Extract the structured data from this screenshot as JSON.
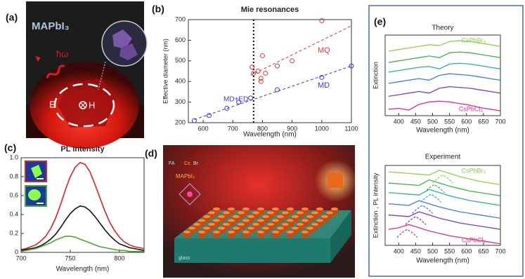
{
  "panel_labels": [
    "(a)",
    "(b)",
    "(c)",
    "(d)",
    "(e)"
  ],
  "illustration_a": {
    "material": "MAPbI₃",
    "photon": "ħω",
    "e_field": "E",
    "h_field": "H"
  },
  "illustration_d": {
    "fa": "FA",
    "cs": "Cs",
    "br": "Br",
    "material": "MAPbI₃",
    "substrate": "glass"
  },
  "chart_data": [
    {
      "type": "scatter",
      "title": "Mie resonances",
      "x_label": "Wavelength (nm)",
      "y_label": "Effective diameter (nm)",
      "xlim": [
        550,
        1100
      ],
      "ylim": [
        200,
        700
      ],
      "xticks": [
        600,
        700,
        800,
        900,
        1000,
        1100
      ],
      "yticks": [
        200,
        300,
        400,
        500,
        600,
        700
      ],
      "series": [
        {
          "name": "MQ",
          "color": "#e03a3a",
          "x": [
            765,
            770,
            785,
            795,
            795,
            800,
            810,
            850,
            900,
            1000
          ],
          "values": [
            470,
            440,
            450,
            400,
            415,
            525,
            440,
            475,
            500,
            695
          ]
        },
        {
          "name": "MD",
          "color": "#3a3ae0",
          "x": [
            570,
            620,
            680,
            720,
            760,
            850,
            1000,
            1100
          ],
          "values": [
            210,
            235,
            270,
            300,
            320,
            360,
            420,
            475
          ]
        }
      ],
      "fits": [
        {
          "color": "#e03a3a",
          "x": [
            760,
            1100
          ],
          "values": [
            430,
            670
          ]
        },
        {
          "color": "#3a3ae0",
          "x": [
            570,
            1100
          ],
          "values": [
            215,
            475
          ]
        }
      ],
      "vline": 770,
      "annotation": "MD+ED"
    },
    {
      "type": "line",
      "title": "PL intensity",
      "x_label": "Wavelength (nm)",
      "xlim": [
        700,
        825
      ],
      "ylim": [
        0,
        1
      ],
      "xticks": [
        700,
        750,
        800
      ],
      "yticks": [
        0,
        0.2,
        0.4,
        0.6,
        0.8,
        {
          "value": 1,
          "label": "1.0"
        }
      ],
      "x": [
        700,
        705,
        710,
        715,
        720,
        725,
        730,
        735,
        740,
        745,
        750,
        755,
        760,
        765,
        770,
        775,
        780,
        785,
        790,
        795,
        800,
        805,
        810,
        815,
        820,
        825
      ],
      "series": [
        {
          "color": "#e02020",
          "values": [
            0.03,
            0.04,
            0.06,
            0.08,
            0.12,
            0.17,
            0.25,
            0.36,
            0.5,
            0.66,
            0.8,
            0.9,
            0.95,
            0.93,
            0.85,
            0.72,
            0.58,
            0.44,
            0.32,
            0.23,
            0.16,
            0.11,
            0.08,
            0.06,
            0.05,
            0.04
          ]
        },
        {
          "color": "#111111",
          "values": [
            0.02,
            0.03,
            0.04,
            0.05,
            0.07,
            0.1,
            0.14,
            0.19,
            0.26,
            0.34,
            0.41,
            0.46,
            0.49,
            0.48,
            0.44,
            0.38,
            0.31,
            0.24,
            0.18,
            0.13,
            0.09,
            0.07,
            0.05,
            0.04,
            0.03,
            0.02
          ]
        },
        {
          "color": "#4aa832",
          "values": [
            0.01,
            0.02,
            0.03,
            0.04,
            0.06,
            0.08,
            0.1,
            0.13,
            0.15,
            0.17,
            0.17,
            0.16,
            0.14,
            0.12,
            0.1,
            0.08,
            0.06,
            0.05,
            0.04,
            0.03,
            0.02,
            0.02,
            0.01,
            0.01,
            0.01,
            0.01
          ]
        }
      ]
    },
    {
      "type": "line",
      "title": "Theory",
      "x_label": "Wavelength (nm)",
      "y_label": "Extinction",
      "xlim": [
        360,
        700
      ],
      "ylim": [
        1,
        6
      ],
      "xticks": [
        400,
        450,
        500,
        550,
        600,
        650,
        700
      ],
      "x": [
        370,
        400,
        430,
        460,
        490,
        520,
        550,
        580,
        610,
        640,
        670,
        700
      ],
      "series": [
        {
          "color": "#8fd14f",
          "values": [
            5.0,
            5.1,
            5.2,
            5.3,
            5.4,
            5.35,
            5.6,
            5.65,
            5.6,
            5.5,
            5.4,
            5.3
          ]
        },
        {
          "color": "#3cb44b",
          "values": [
            4.3,
            4.4,
            4.5,
            4.6,
            4.7,
            4.6,
            4.9,
            4.95,
            4.9,
            4.8,
            4.7,
            4.6
          ]
        },
        {
          "color": "#2ab3a0",
          "values": [
            3.7,
            3.8,
            3.9,
            4.0,
            4.05,
            3.9,
            4.2,
            4.25,
            4.2,
            4.1,
            4.0,
            3.9
          ]
        },
        {
          "color": "#3a7fd5",
          "values": [
            3.0,
            3.1,
            3.2,
            3.3,
            3.2,
            3.5,
            3.6,
            3.55,
            3.5,
            3.4,
            3.3,
            3.2
          ]
        },
        {
          "color": "#7b3fb5",
          "values": [
            2.2,
            2.3,
            2.4,
            2.5,
            2.4,
            2.7,
            2.8,
            2.75,
            2.7,
            2.6,
            2.5,
            2.4
          ]
        },
        {
          "color": "#d6338b",
          "values": [
            1.4,
            1.45,
            1.35,
            1.7,
            1.85,
            1.9,
            1.85,
            1.75,
            1.65,
            1.5,
            1.4,
            1.3
          ]
        }
      ],
      "annotations": [
        {
          "text": "CsPbBr₃",
          "color": "#8fd14f"
        },
        {
          "text": "CsPbCl₃",
          "color": "#d6338b"
        }
      ]
    },
    {
      "type": "line",
      "title": "Experiment",
      "x_label": "Wavelength (nm)",
      "y_label": "Extinction , PL intensity",
      "xlim": [
        360,
        700
      ],
      "ylim": [
        1,
        6
      ],
      "xticks": [
        400,
        450,
        500,
        550,
        600,
        650,
        700
      ],
      "x": [
        370,
        400,
        430,
        460,
        490,
        520,
        550,
        580,
        610,
        640,
        670,
        700
      ],
      "series": [
        {
          "color": "#8fd14f",
          "values": [
            5.6,
            5.55,
            5.5,
            5.45,
            5.4,
            5.7,
            5.5,
            5.3,
            5.15,
            5.0,
            4.9,
            4.8
          ]
        },
        {
          "color": "#3cb44b",
          "values": [
            4.9,
            4.85,
            4.8,
            4.75,
            5.1,
            4.9,
            4.7,
            4.55,
            4.4,
            4.3,
            4.2,
            4.1
          ]
        },
        {
          "color": "#2ab3a0",
          "values": [
            4.3,
            4.25,
            4.2,
            4.15,
            4.5,
            4.3,
            4.1,
            3.95,
            3.8,
            3.7,
            3.6,
            3.5
          ]
        },
        {
          "color": "#3a7fd5",
          "values": [
            3.6,
            3.55,
            3.5,
            3.8,
            3.6,
            3.4,
            3.25,
            3.1,
            3.0,
            2.9,
            2.8,
            2.7
          ]
        },
        {
          "color": "#7b3fb5",
          "values": [
            2.9,
            2.85,
            2.8,
            3.1,
            2.9,
            2.7,
            2.55,
            2.4,
            2.3,
            2.2,
            2.1,
            2.0
          ]
        },
        {
          "color": "#d6338b",
          "values": [
            2.0,
            2.1,
            2.3,
            2.1,
            1.9,
            1.75,
            1.6,
            1.5,
            1.4,
            1.3,
            1.2,
            1.1
          ]
        },
        {
          "color": "#8fd14f",
          "dashed": true,
          "x": [
            500,
            515,
            530,
            545,
            560
          ],
          "values": [
            4.9,
            5.2,
            5.4,
            5.2,
            4.9
          ]
        },
        {
          "color": "#3cb44b",
          "dashed": true,
          "x": [
            475,
            490,
            505,
            520,
            535
          ],
          "values": [
            4.3,
            4.6,
            4.8,
            4.6,
            4.3
          ]
        },
        {
          "color": "#2ab3a0",
          "dashed": true,
          "x": [
            465,
            480,
            495,
            510,
            525
          ],
          "values": [
            3.7,
            4.0,
            4.2,
            4.0,
            3.7
          ]
        },
        {
          "color": "#3a7fd5",
          "dashed": true,
          "x": [
            440,
            455,
            470,
            485,
            500
          ],
          "values": [
            3.0,
            3.3,
            3.5,
            3.3,
            3.0
          ]
        },
        {
          "color": "#7b3fb5",
          "dashed": true,
          "x": [
            420,
            435,
            450,
            465,
            480
          ],
          "values": [
            2.3,
            2.6,
            2.8,
            2.6,
            2.3
          ]
        },
        {
          "color": "#d6338b",
          "dashed": true,
          "x": [
            395,
            410,
            425,
            440,
            455
          ],
          "values": [
            1.5,
            1.8,
            2.0,
            1.8,
            1.5
          ]
        }
      ],
      "annotations": [
        {
          "text": "CsPbBr₃",
          "color": "#8fd14f"
        },
        {
          "text": "CsPbCl₃",
          "color": "#d6338b"
        }
      ]
    }
  ]
}
